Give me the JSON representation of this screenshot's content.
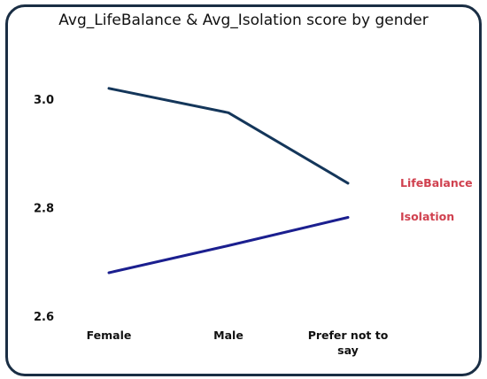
{
  "chart_data": {
    "type": "line",
    "title": "Avg_LifeBalance & Avg_Isolation score by gender",
    "xlabel": "",
    "ylabel": "",
    "categories": [
      "Female",
      "Male",
      "Prefer not to say"
    ],
    "category_lines": [
      [
        "Female"
      ],
      [
        "Male"
      ],
      [
        "Prefer not to",
        "say"
      ]
    ],
    "yticks": [
      "2.6",
      "2.8",
      "3.0"
    ],
    "ylim": [
      2.6,
      3.0
    ],
    "grid": false,
    "legend": "none",
    "series": [
      {
        "name": "LifeBalance",
        "values": [
          3.02,
          2.975,
          2.845
        ],
        "color": "#14365a",
        "label_color": "#d0414f"
      },
      {
        "name": "Isolation",
        "values": [
          2.68,
          2.73,
          2.782
        ],
        "color": "#1b1f8f",
        "label_color": "#d0414f"
      }
    ]
  }
}
